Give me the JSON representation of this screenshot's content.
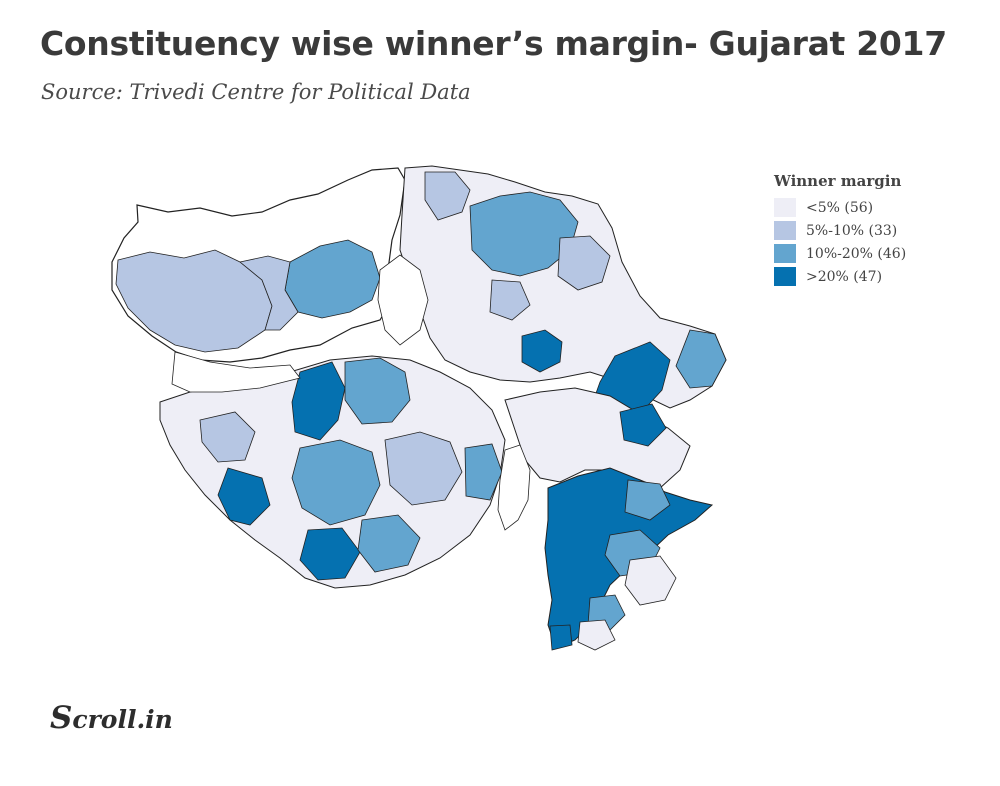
{
  "header": {
    "title": "Constituency wise winner’s margin- Gujarat 2017",
    "subtitle": "Source: Trivedi Centre for Political Data"
  },
  "legend": {
    "title": "Winner margin",
    "items": [
      {
        "label": "<5% (56)",
        "color": "#eeeef6"
      },
      {
        "label": "5%-10% (33)",
        "color": "#b6c6e3"
      },
      {
        "label": "10%-20% (46)",
        "color": "#63a5cf"
      },
      {
        "label": ">20% (47)",
        "color": "#0571b0"
      }
    ]
  },
  "map": {
    "boundary_color": "#222222",
    "region": "Gujarat"
  },
  "logo": {
    "initial": "S",
    "rest": "croll.in"
  }
}
